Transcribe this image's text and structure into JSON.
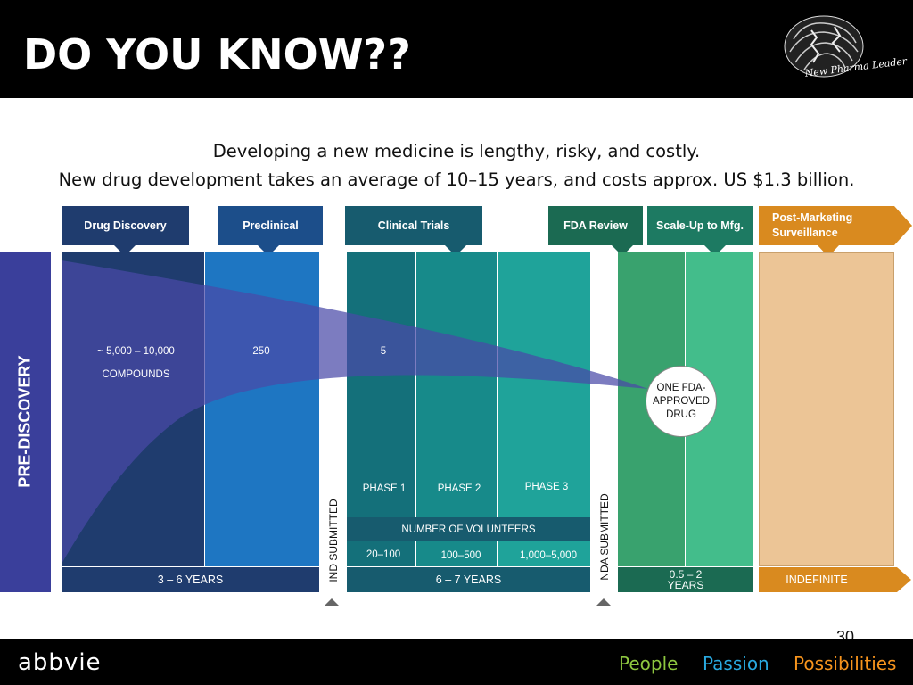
{
  "header": {
    "title": "DO YOU KNOW??",
    "logo_text": "New Pharma Leader"
  },
  "subtitle": {
    "line1": "Developing a new medicine is lengthy, risky, and costly.",
    "line2": "New drug development takes an average of 10–15 years, and costs approx. US $1.3 billion."
  },
  "stages": {
    "drug_discovery": "Drug Discovery",
    "preclinical": "Preclinical",
    "clinical_trials": "Clinical Trials",
    "fda_review": "FDA Review",
    "scale_up": "Scale-Up to Mfg.",
    "post_marketing": "Post-Marketing Surveillance"
  },
  "side_label": "PRE-DISCOVERY",
  "counts": {
    "compounds_range": "~ 5,000 – 10,000",
    "compounds_label": "COMPOUNDS",
    "preclinical": "250",
    "clinical": "5"
  },
  "approved": "ONE FDA-APPROVED DRUG",
  "phases": {
    "p1": "PHASE 1",
    "p2": "PHASE 2",
    "p3": "PHASE 3"
  },
  "volunteers": {
    "label": "NUMBER OF VOLUNTEERS",
    "p1": "20–100",
    "p2": "100–500",
    "p3": "1,000–5,000"
  },
  "durations": {
    "discovery_preclinical": "3 – 6  YEARS",
    "clinical": "6 – 7  YEARS",
    "fda": "0.5 – 2 YEARS",
    "post": "INDEFINITE"
  },
  "markers": {
    "ind": "IND SUBMITTED",
    "nda": "NDA SUBMITTED"
  },
  "page_number": "30",
  "footer": {
    "brand": "abbvie",
    "tagline": [
      "People",
      "Passion",
      "Possibilities"
    ],
    "colors": {
      "people": "#8dc63f",
      "passion": "#29a9e0",
      "possibilities": "#f7941d"
    }
  },
  "colors": {
    "drug_discovery": "#1f3c6e",
    "preclinical": "#1e76c2",
    "clinical_p1": "#14707a",
    "clinical_p2": "#178a8a",
    "clinical_p3": "#1fa39a",
    "fda": "#39a26e",
    "scale_up": "#43bd8b",
    "post_marketing": "#ecc596",
    "post_marketing_tab": "#d98a1f",
    "pre_discovery": "#3a3f9b"
  }
}
